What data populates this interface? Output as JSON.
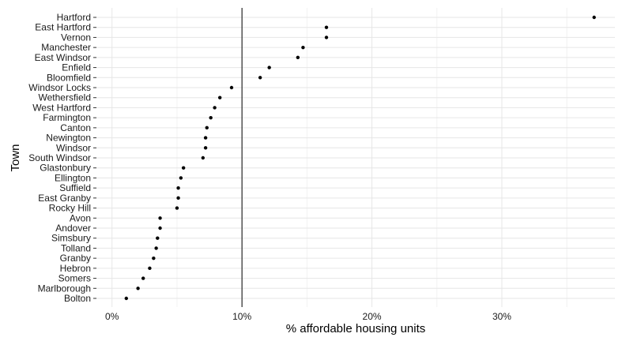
{
  "chart_data": {
    "type": "scatter",
    "title": "",
    "xlabel": "% affordable housing units",
    "ylabel": "Town",
    "xlim": [
      -0.012,
      0.387
    ],
    "x_ticks": [
      0,
      0.1,
      0.2,
      0.3
    ],
    "x_tick_labels": [
      "0%",
      "10%",
      "20%",
      "30%"
    ],
    "reference_line_x": 0.1,
    "grid": true,
    "categories": [
      "Hartford",
      "East Hartford",
      "Vernon",
      "Manchester",
      "East Windsor",
      "Enfield",
      "Bloomfield",
      "Windsor Locks",
      "Wethersfield",
      "West Hartford",
      "Farmington",
      "Canton",
      "Newington",
      "Windsor",
      "South Windsor",
      "Glastonbury",
      "Ellington",
      "Suffield",
      "East Granby",
      "Rocky Hill",
      "Avon",
      "Andover",
      "Simsbury",
      "Tolland",
      "Granby",
      "Hebron",
      "Somers",
      "Marlborough",
      "Bolton"
    ],
    "values": [
      0.371,
      0.165,
      0.165,
      0.147,
      0.143,
      0.121,
      0.114,
      0.092,
      0.083,
      0.079,
      0.076,
      0.073,
      0.072,
      0.072,
      0.07,
      0.055,
      0.053,
      0.051,
      0.051,
      0.05,
      0.037,
      0.037,
      0.035,
      0.034,
      0.032,
      0.029,
      0.024,
      0.02,
      0.011
    ],
    "point_color": "#000000"
  }
}
